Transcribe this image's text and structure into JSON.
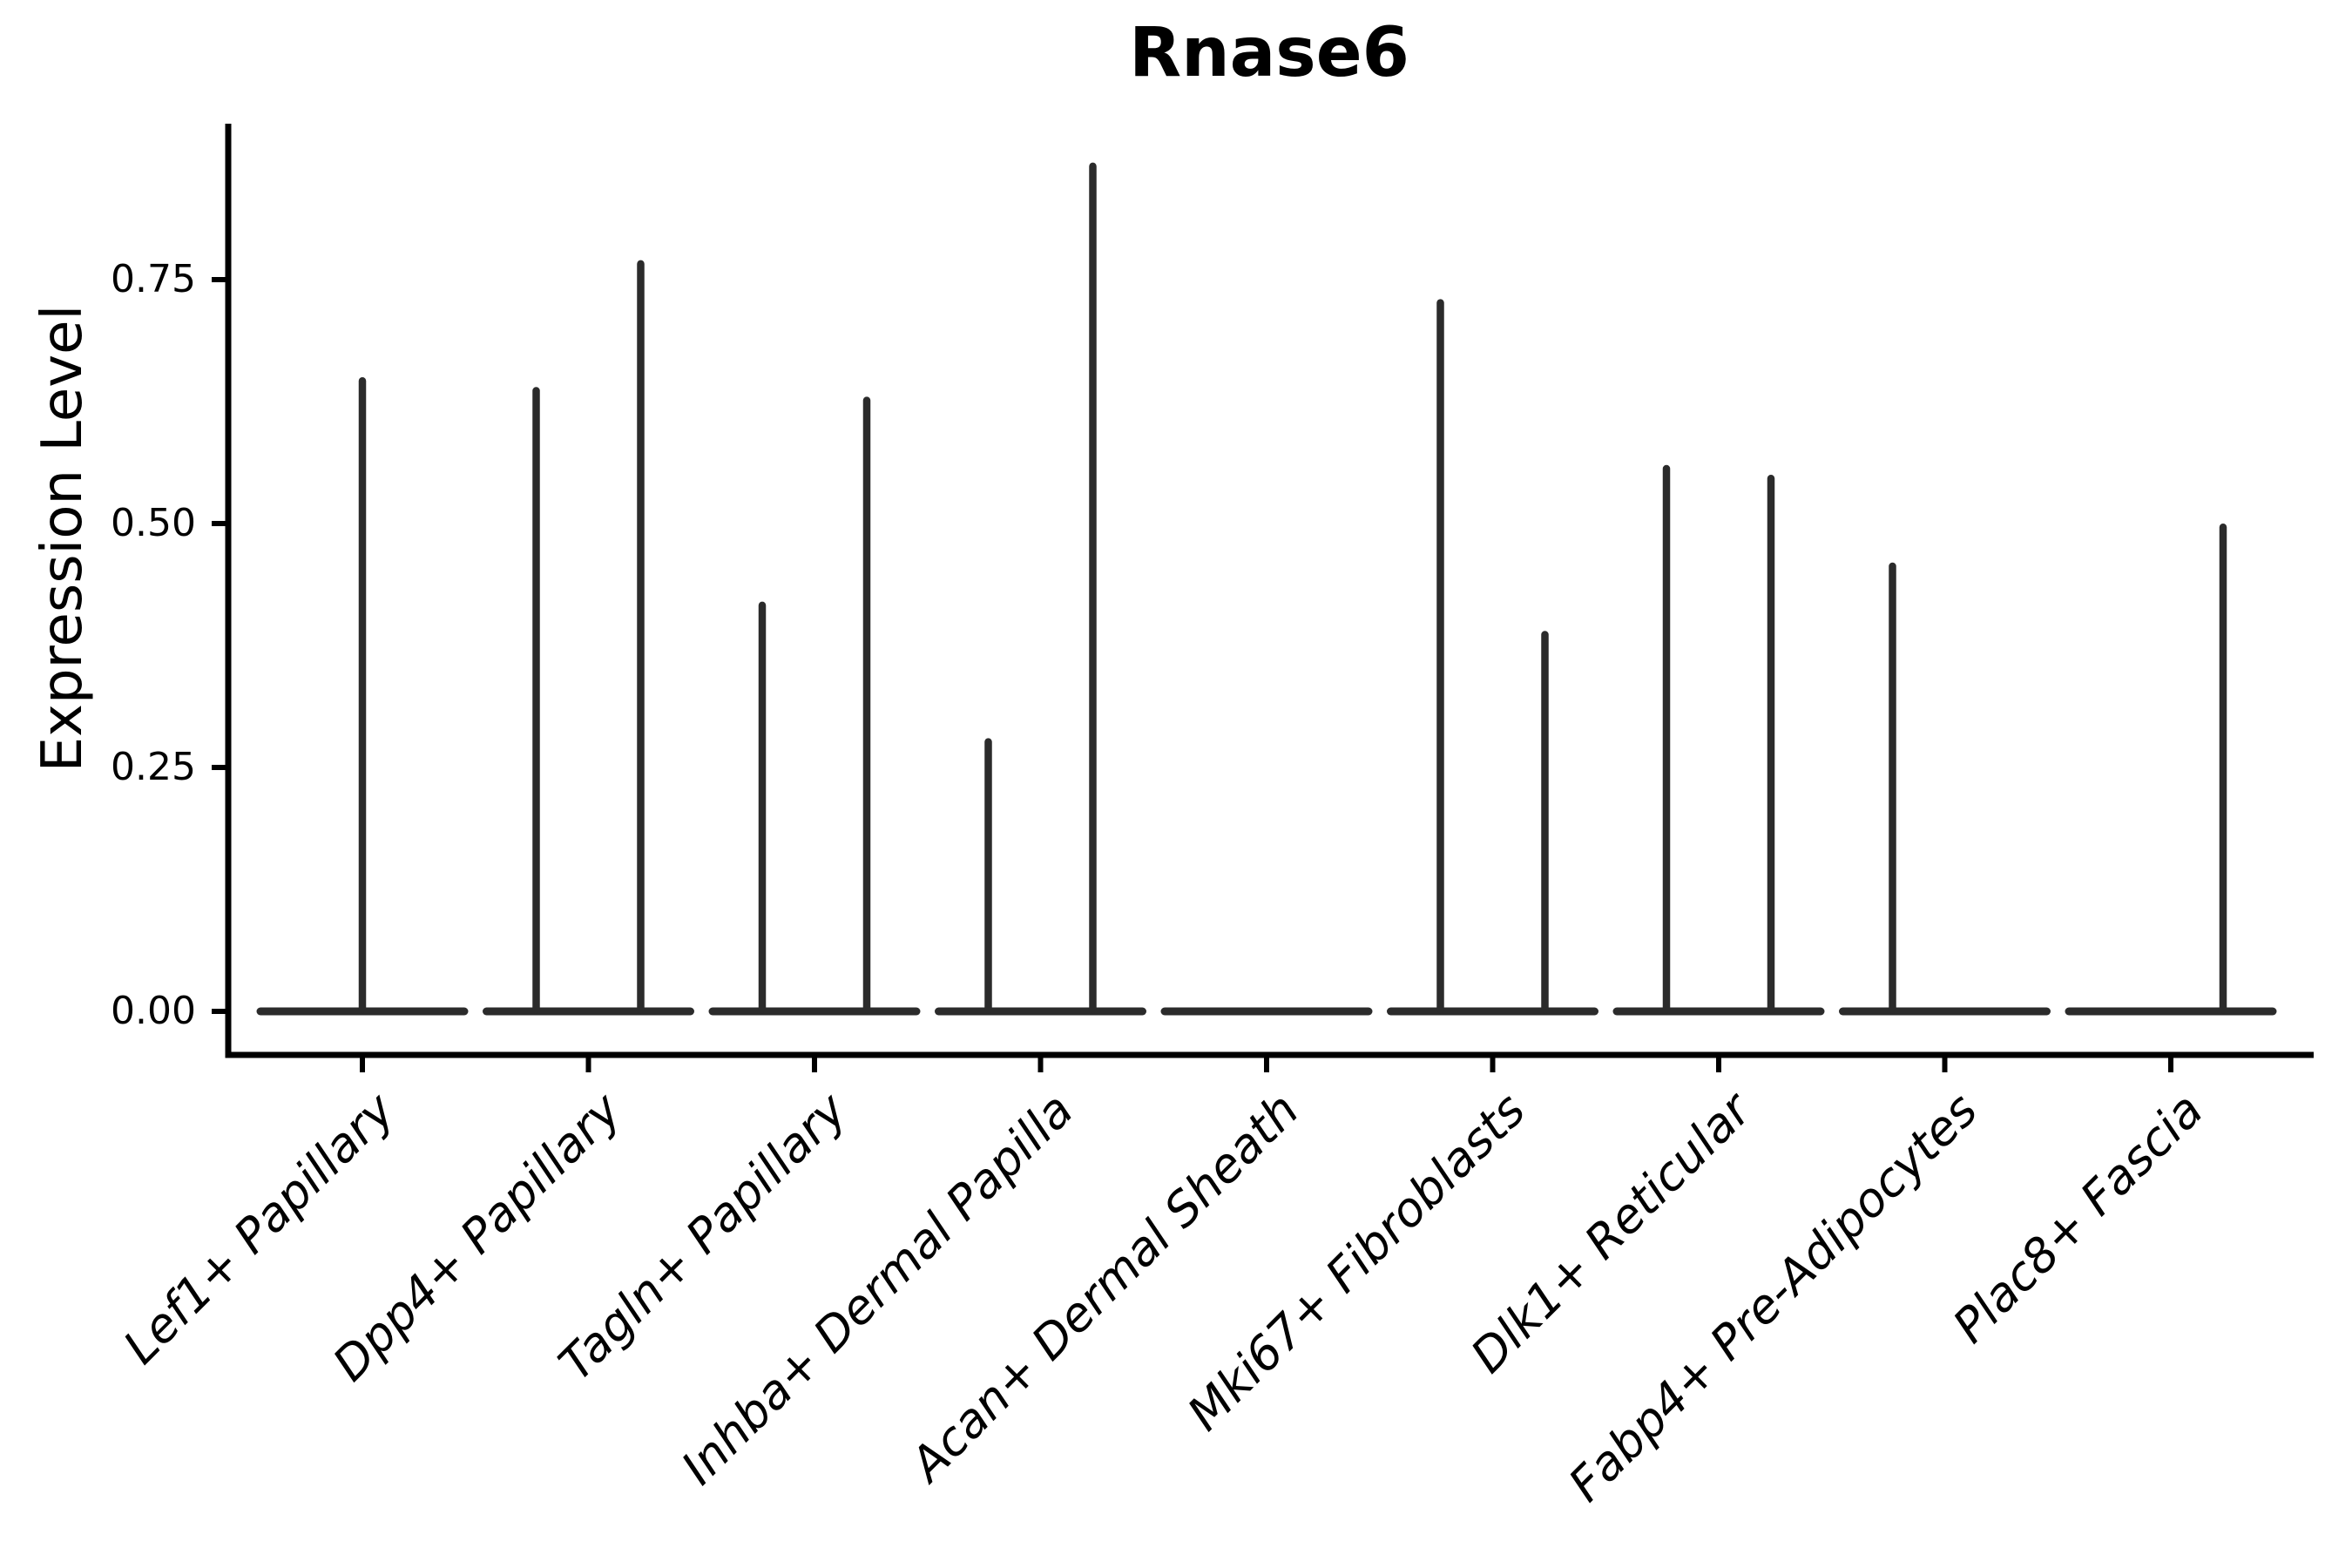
{
  "chart_data": {
    "type": "violin",
    "title": "Rnase6",
    "ylabel": "Expression Level",
    "xlabel": "",
    "ylim": [
      0,
      0.91
    ],
    "yticks": [
      "0.00",
      "0.25",
      "0.50",
      "0.75"
    ],
    "ytick_values": [
      0,
      0.25,
      0.5,
      0.75
    ],
    "grid": false,
    "legend": "none",
    "categories": [
      "Lef1+ Papillary",
      "Dpp4+ Papillary",
      "Tagln+ Papillary",
      "Inhba+ Dermal Papilla",
      "Acan+ Dermal Sheath",
      "Mki67+ Fibroblasts",
      "Dlk1+ Reticular",
      "Fabp4+ Pre-Adipocytes",
      "Plac8+ Fascia"
    ],
    "violins": [
      {
        "category": "Lef1+ Papillary",
        "baseline_value": 0,
        "spikes": [
          {
            "position": "center",
            "max": 0.65
          }
        ]
      },
      {
        "category": "Dpp4+ Papillary",
        "baseline_value": 0,
        "spikes": [
          {
            "position": "left",
            "max": 0.64
          },
          {
            "position": "right",
            "max": 0.77
          }
        ]
      },
      {
        "category": "Tagln+ Papillary",
        "baseline_value": 0,
        "spikes": [
          {
            "position": "left",
            "max": 0.42
          },
          {
            "position": "right",
            "max": 0.63
          }
        ]
      },
      {
        "category": "Inhba+ Dermal Papilla",
        "baseline_value": 0,
        "spikes": [
          {
            "position": "left",
            "max": 0.28
          },
          {
            "position": "right",
            "max": 0.87
          }
        ]
      },
      {
        "category": "Acan+ Dermal Sheath",
        "baseline_value": 0,
        "spikes": []
      },
      {
        "category": "Mki67+ Fibroblasts",
        "baseline_value": 0,
        "spikes": [
          {
            "position": "left",
            "max": 0.73
          },
          {
            "position": "right",
            "max": 0.39
          }
        ]
      },
      {
        "category": "Dlk1+ Reticular",
        "baseline_value": 0,
        "spikes": [
          {
            "position": "left",
            "max": 0.56
          },
          {
            "position": "right",
            "max": 0.55
          }
        ]
      },
      {
        "category": "Fabp4+ Pre-Adipocytes",
        "baseline_value": 0,
        "spikes": [
          {
            "position": "left",
            "max": 0.46
          }
        ]
      },
      {
        "category": "Plac8+ Fascia",
        "baseline_value": 0,
        "spikes": [
          {
            "position": "right",
            "max": 0.5
          }
        ]
      }
    ],
    "colors": {
      "violin_stroke": "#2b2b2b",
      "axis": "#000000",
      "text": "#000000",
      "background": "#ffffff"
    }
  }
}
